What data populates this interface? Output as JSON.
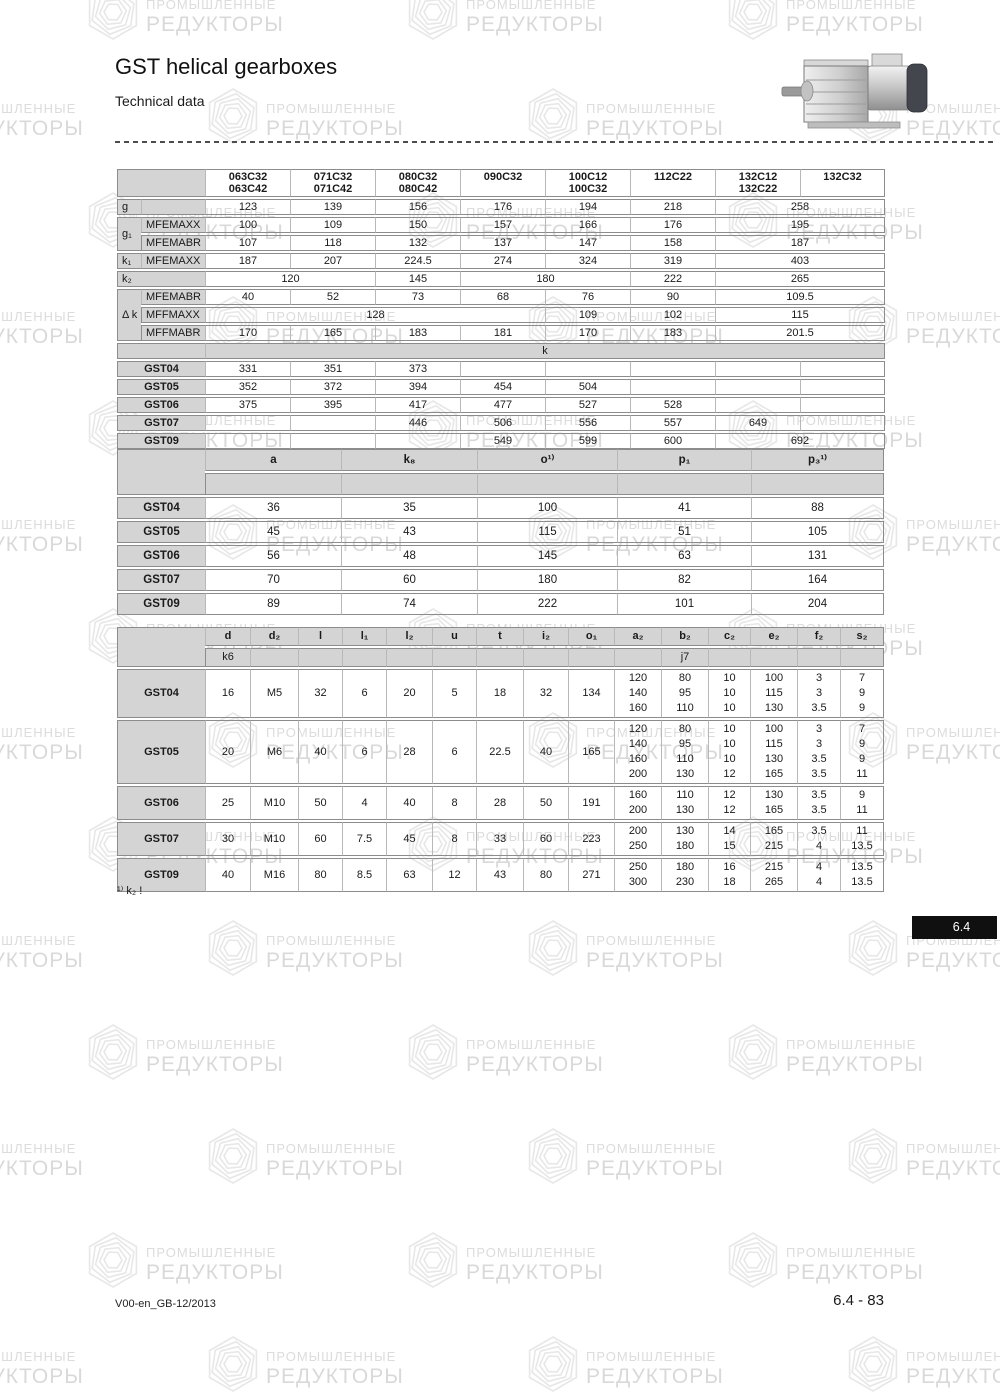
{
  "header": {
    "title": "GST helical gearboxes",
    "subtitle": "Technical data"
  },
  "watermark": {
    "line1": "ПРОМЫШЛЕННЫЕ",
    "line2": "РЕДУКТОРЫ"
  },
  "tables": {
    "t1": {
      "rows": [
        {
          "cells": [
            {
              "t": "",
              "c": "lbl",
              "cs": 2
            },
            {
              "t": "063C32\n063C42",
              "c": "head"
            },
            {
              "t": "071C32\n071C42",
              "c": "head"
            },
            {
              "t": "080C32\n080C42",
              "c": "head"
            },
            {
              "t": "090C32",
              "c": "head"
            },
            {
              "t": "100C12\n100C32",
              "c": "head"
            },
            {
              "t": "112C22",
              "c": "head"
            },
            {
              "t": "132C12\n132C22",
              "c": "head"
            },
            {
              "t": "132C32",
              "c": "head"
            }
          ]
        },
        {
          "cells": [
            {
              "t": "g",
              "c": "lbl"
            },
            {
              "t": "",
              "c": "lbl"
            },
            {
              "t": "123"
            },
            {
              "t": "139"
            },
            {
              "t": "156"
            },
            {
              "t": "176"
            },
            {
              "t": "194"
            },
            {
              "t": "218"
            },
            {
              "t": "258",
              "cs": 2
            }
          ]
        },
        {
          "cells": [
            {
              "t": "g₁",
              "c": "lbl",
              "rs": 2
            },
            {
              "t": "MFEMAXX",
              "c": "lbl"
            },
            {
              "t": "100"
            },
            {
              "t": "109"
            },
            {
              "t": "150"
            },
            {
              "t": "157"
            },
            {
              "t": "166"
            },
            {
              "t": "176"
            },
            {
              "t": "195",
              "cs": 2
            }
          ]
        },
        {
          "cells": [
            {
              "t": "MFEMABR",
              "c": "lbl"
            },
            {
              "t": "107"
            },
            {
              "t": "118"
            },
            {
              "t": "132"
            },
            {
              "t": "137"
            },
            {
              "t": "147"
            },
            {
              "t": "158"
            },
            {
              "t": "187",
              "cs": 2
            }
          ]
        },
        {
          "cells": [
            {
              "t": "k₁",
              "c": "lbl"
            },
            {
              "t": "MFEMAXX",
              "c": "lbl"
            },
            {
              "t": "187"
            },
            {
              "t": "207"
            },
            {
              "t": "224.5"
            },
            {
              "t": "274"
            },
            {
              "t": "324"
            },
            {
              "t": "319"
            },
            {
              "t": "403",
              "cs": 2
            }
          ]
        },
        {
          "cells": [
            {
              "t": "k₂",
              "c": "lbl",
              "cs": 2
            },
            {
              "t": "120",
              "cs": 2
            },
            {
              "t": "145"
            },
            {
              "t": "180",
              "cs": 2
            },
            {
              "t": "222"
            },
            {
              "t": "265",
              "cs": 2
            }
          ]
        },
        {
          "cells": [
            {
              "t": "Δ k",
              "c": "lbl",
              "rs": 3
            },
            {
              "t": "MFEMABR",
              "c": "lbl"
            },
            {
              "t": "40"
            },
            {
              "t": "52"
            },
            {
              "t": "73"
            },
            {
              "t": "68"
            },
            {
              "t": "76"
            },
            {
              "t": "90"
            },
            {
              "t": "109.5",
              "cs": 2
            }
          ]
        },
        {
          "cells": [
            {
              "t": "MFFMAXX",
              "c": "lbl"
            },
            {
              "t": "128",
              "cs": 4
            },
            {
              "t": "109"
            },
            {
              "t": "102"
            },
            {
              "t": "115",
              "cs": 2
            }
          ]
        },
        {
          "cells": [
            {
              "t": "MFFMABR",
              "c": "lbl"
            },
            {
              "t": "170"
            },
            {
              "t": "165"
            },
            {
              "t": "183"
            },
            {
              "t": "181"
            },
            {
              "t": "170"
            },
            {
              "t": "183"
            },
            {
              "t": "201.5",
              "cs": 2
            }
          ]
        },
        {
          "cells": [
            {
              "t": "",
              "c": "lbl",
              "cs": 2
            },
            {
              "t": "k",
              "c": "band",
              "cs": 8
            }
          ]
        },
        {
          "cells": [
            {
              "t": "GST04",
              "c": "lblc",
              "cs": 2
            },
            {
              "t": "331"
            },
            {
              "t": "351"
            },
            {
              "t": "373"
            },
            {
              "t": ""
            },
            {
              "t": ""
            },
            {
              "t": ""
            },
            {
              "t": ""
            },
            {
              "t": ""
            }
          ]
        },
        {
          "cells": [
            {
              "t": "GST05",
              "c": "lblc",
              "cs": 2
            },
            {
              "t": "352"
            },
            {
              "t": "372"
            },
            {
              "t": "394"
            },
            {
              "t": "454"
            },
            {
              "t": "504"
            },
            {
              "t": ""
            },
            {
              "t": ""
            },
            {
              "t": ""
            }
          ]
        },
        {
          "cells": [
            {
              "t": "GST06",
              "c": "lblc",
              "cs": 2
            },
            {
              "t": "375"
            },
            {
              "t": "395"
            },
            {
              "t": "417"
            },
            {
              "t": "477"
            },
            {
              "t": "527"
            },
            {
              "t": "528"
            },
            {
              "t": ""
            },
            {
              "t": ""
            }
          ]
        },
        {
          "cells": [
            {
              "t": "GST07",
              "c": "lblc",
              "cs": 2
            },
            {
              "t": ""
            },
            {
              "t": ""
            },
            {
              "t": "446"
            },
            {
              "t": "506"
            },
            {
              "t": "556"
            },
            {
              "t": "557"
            },
            {
              "t": "649"
            },
            {
              "t": ""
            }
          ]
        },
        {
          "cells": [
            {
              "t": "GST09",
              "c": "lblc",
              "cs": 2
            },
            {
              "t": ""
            },
            {
              "t": ""
            },
            {
              "t": ""
            },
            {
              "t": "549"
            },
            {
              "t": "599"
            },
            {
              "t": "600"
            },
            {
              "t": "692",
              "cs": 2
            }
          ]
        }
      ]
    },
    "t2": {
      "rows": [
        {
          "cells": [
            {
              "t": "",
              "c": "lbl",
              "rs": 2
            },
            {
              "t": "a",
              "c": "ghead"
            },
            {
              "t": "k₈",
              "c": "ghead"
            },
            {
              "t": "o¹⁾",
              "c": "ghead"
            },
            {
              "t": "p₁",
              "c": "ghead"
            },
            {
              "t": "p₃¹⁾",
              "c": "ghead"
            }
          ]
        },
        {
          "cells": [
            {
              "t": "",
              "c": "gsub"
            },
            {
              "t": "",
              "c": "gsub"
            },
            {
              "t": "",
              "c": "gsub"
            },
            {
              "t": "",
              "c": "gsub"
            },
            {
              "t": "",
              "c": "gsub"
            }
          ]
        },
        {
          "cells": [
            {
              "t": "GST04",
              "c": "lblc"
            },
            {
              "t": "36"
            },
            {
              "t": "35"
            },
            {
              "t": "100"
            },
            {
              "t": "41"
            },
            {
              "t": "88"
            }
          ]
        },
        {
          "cells": [
            {
              "t": "GST05",
              "c": "lblc"
            },
            {
              "t": "45"
            },
            {
              "t": "43"
            },
            {
              "t": "115"
            },
            {
              "t": "51"
            },
            {
              "t": "105"
            }
          ]
        },
        {
          "cells": [
            {
              "t": "GST06",
              "c": "lblc"
            },
            {
              "t": "56"
            },
            {
              "t": "48"
            },
            {
              "t": "145"
            },
            {
              "t": "63"
            },
            {
              "t": "131"
            }
          ]
        },
        {
          "cells": [
            {
              "t": "GST07",
              "c": "lblc"
            },
            {
              "t": "70"
            },
            {
              "t": "60"
            },
            {
              "t": "180"
            },
            {
              "t": "82"
            },
            {
              "t": "164"
            }
          ]
        },
        {
          "cells": [
            {
              "t": "GST09",
              "c": "lblc"
            },
            {
              "t": "89"
            },
            {
              "t": "74"
            },
            {
              "t": "222"
            },
            {
              "t": "101"
            },
            {
              "t": "204"
            }
          ]
        }
      ]
    },
    "t3": {
      "rows": [
        {
          "cells": [
            {
              "t": "",
              "c": "lbl",
              "rs": 2
            },
            {
              "t": "d",
              "c": "ghead"
            },
            {
              "t": "d₂",
              "c": "ghead"
            },
            {
              "t": "l",
              "c": "ghead"
            },
            {
              "t": "l₁",
              "c": "ghead"
            },
            {
              "t": "l₂",
              "c": "ghead"
            },
            {
              "t": "u",
              "c": "ghead"
            },
            {
              "t": "t",
              "c": "ghead"
            },
            {
              "t": "i₂",
              "c": "ghead"
            },
            {
              "t": "o₁",
              "c": "ghead"
            },
            {
              "t": "a₂",
              "c": "ghead"
            },
            {
              "t": "b₂",
              "c": "ghead"
            },
            {
              "t": "c₂",
              "c": "ghead"
            },
            {
              "t": "e₂",
              "c": "ghead"
            },
            {
              "t": "f₂",
              "c": "ghead"
            },
            {
              "t": "s₂",
              "c": "ghead"
            }
          ]
        },
        {
          "cells": [
            {
              "t": "k6",
              "c": "gsub"
            },
            {
              "t": "",
              "c": "gsub"
            },
            {
              "t": "",
              "c": "gsub"
            },
            {
              "t": "",
              "c": "gsub"
            },
            {
              "t": "",
              "c": "gsub"
            },
            {
              "t": "",
              "c": "gsub"
            },
            {
              "t": "",
              "c": "gsub"
            },
            {
              "t": "",
              "c": "gsub"
            },
            {
              "t": "",
              "c": "gsub"
            },
            {
              "t": "",
              "c": "gsub"
            },
            {
              "t": "j7",
              "c": "gsub"
            },
            {
              "t": "",
              "c": "gsub"
            },
            {
              "t": "",
              "c": "gsub"
            },
            {
              "t": "",
              "c": "gsub"
            },
            {
              "t": "",
              "c": "gsub"
            }
          ]
        },
        {
          "cells": [
            {
              "t": "GST04",
              "c": "lblc"
            },
            {
              "t": "16"
            },
            {
              "t": "M5"
            },
            {
              "t": "32"
            },
            {
              "t": "6"
            },
            {
              "t": "20"
            },
            {
              "t": "5"
            },
            {
              "t": "18"
            },
            {
              "t": "32"
            },
            {
              "t": "134"
            },
            {
              "t": "120\n140\n160"
            },
            {
              "t": "80\n95\n110"
            },
            {
              "t": "10\n10\n10"
            },
            {
              "t": "100\n115\n130"
            },
            {
              "t": "3\n3\n3.5"
            },
            {
              "t": "7\n9\n9"
            }
          ]
        },
        {
          "cells": [
            {
              "t": "GST05",
              "c": "lblc"
            },
            {
              "t": "20"
            },
            {
              "t": "M6"
            },
            {
              "t": "40"
            },
            {
              "t": "6"
            },
            {
              "t": "28"
            },
            {
              "t": "6"
            },
            {
              "t": "22.5"
            },
            {
              "t": "40"
            },
            {
              "t": "165"
            },
            {
              "t": "120\n140\n160\n200"
            },
            {
              "t": "80\n95\n110\n130"
            },
            {
              "t": "10\n10\n10\n12"
            },
            {
              "t": "100\n115\n130\n165"
            },
            {
              "t": "3\n3\n3.5\n3.5"
            },
            {
              "t": "7\n9\n9\n11"
            }
          ]
        },
        {
          "cells": [
            {
              "t": "GST06",
              "c": "lblc"
            },
            {
              "t": "25"
            },
            {
              "t": "M10"
            },
            {
              "t": "50"
            },
            {
              "t": "4"
            },
            {
              "t": "40"
            },
            {
              "t": "8"
            },
            {
              "t": "28"
            },
            {
              "t": "50"
            },
            {
              "t": "191"
            },
            {
              "t": "160\n200"
            },
            {
              "t": "110\n130"
            },
            {
              "t": "12\n12"
            },
            {
              "t": "130\n165"
            },
            {
              "t": "3.5\n3.5"
            },
            {
              "t": "9\n11"
            }
          ]
        },
        {
          "cells": [
            {
              "t": "GST07",
              "c": "lblc"
            },
            {
              "t": "30"
            },
            {
              "t": "M10"
            },
            {
              "t": "60"
            },
            {
              "t": "7.5"
            },
            {
              "t": "45"
            },
            {
              "t": "8"
            },
            {
              "t": "33"
            },
            {
              "t": "60"
            },
            {
              "t": "223"
            },
            {
              "t": "200\n250"
            },
            {
              "t": "130\n180"
            },
            {
              "t": "14\n15"
            },
            {
              "t": "165\n215"
            },
            {
              "t": "3.5\n4"
            },
            {
              "t": "11\n13.5"
            }
          ]
        },
        {
          "cells": [
            {
              "t": "GST09",
              "c": "lblc"
            },
            {
              "t": "40"
            },
            {
              "t": "M16"
            },
            {
              "t": "80"
            },
            {
              "t": "8.5"
            },
            {
              "t": "63"
            },
            {
              "t": "12"
            },
            {
              "t": "43"
            },
            {
              "t": "80"
            },
            {
              "t": "271"
            },
            {
              "t": "250\n300"
            },
            {
              "t": "180\n230"
            },
            {
              "t": "16\n18"
            },
            {
              "t": "215\n265"
            },
            {
              "t": "4\n4"
            },
            {
              "t": "13.5\n13.5"
            }
          ]
        }
      ]
    }
  },
  "footnote": "¹⁾ k₂ !",
  "badge": "6.4",
  "footer": {
    "left": "V00-en_GB-12/2013",
    "right": "6.4 - 83"
  }
}
